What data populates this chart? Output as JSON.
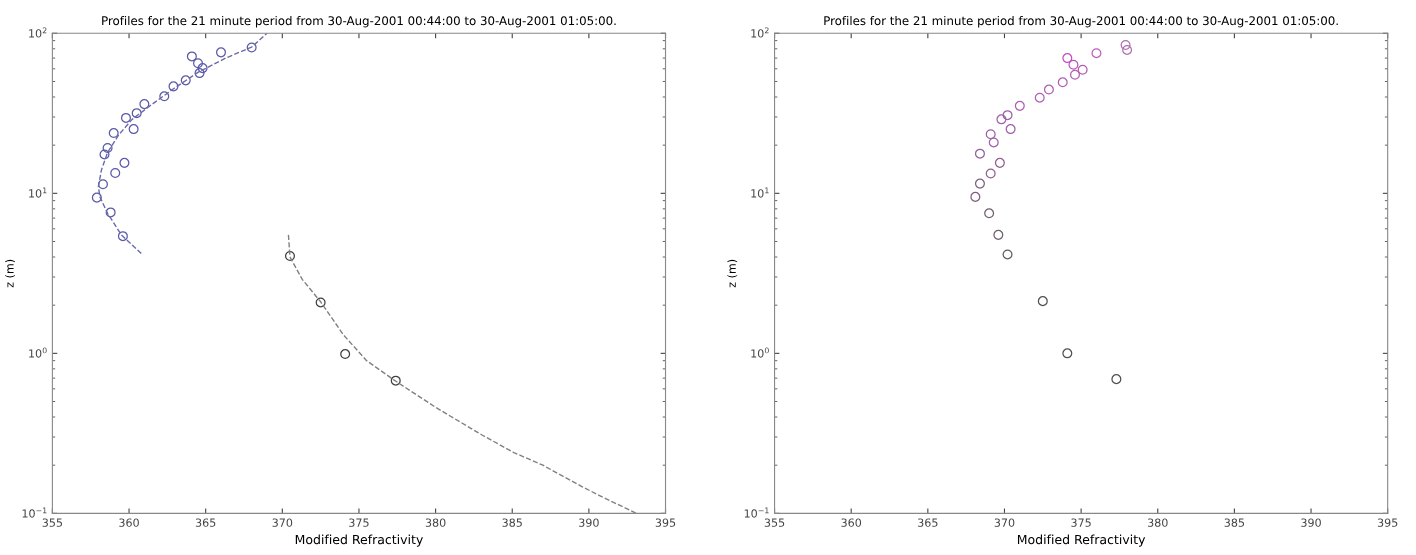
{
  "chart_data": [
    {
      "type": "scatter",
      "title": "Profiles for the 21 minute period from 30-Aug-2001 00:44:00 to 30-Aug-2001 01:05:00.",
      "xlabel": "Modified Refractivity",
      "ylabel": "z (m)",
      "log": "y",
      "xlim": [
        355,
        395
      ],
      "xticks": [
        355,
        360,
        365,
        370,
        375,
        380,
        385,
        390,
        395
      ],
      "ylim": [
        0.1,
        100
      ],
      "yticks": [
        {
          "value": 0.1,
          "label": "10$^{−1}$"
        },
        {
          "value": 1,
          "label": "10$^{0}$"
        },
        {
          "value": 10,
          "label": "10$^{1}$"
        },
        {
          "value": 100,
          "label": "10$^{2}$"
        }
      ],
      "marker": "circle",
      "grid": false,
      "series": [
        {
          "type": "line",
          "line_style": "dashed",
          "marker": "none",
          "color": "#6a6aa8",
          "x": [
            360.8,
            359.5,
            358.6,
            358.1,
            358.0,
            358.2,
            358.6,
            359.3,
            360.2,
            361.5,
            362.9,
            364.5,
            366.3,
            368.0,
            369.0
          ],
          "values": [
            4.2,
            5.5,
            7.5,
            9.5,
            11,
            14,
            18,
            23,
            29,
            36,
            45,
            57,
            70,
            82,
            100
          ]
        },
        {
          "type": "line",
          "line_style": "dashed",
          "marker": "none",
          "color": "#808080",
          "x": [
            370.4,
            370.5,
            371.3,
            372.5,
            374.0,
            375.5,
            377.3,
            380.0,
            383.0,
            385.1,
            387.0,
            389.6,
            391.0,
            393.1
          ],
          "values": [
            5.5,
            4.0,
            2.9,
            2.1,
            1.3,
            0.9,
            0.68,
            0.46,
            0.31,
            0.24,
            0.2,
            0.146,
            0.125,
            0.1
          ]
        },
        {
          "color": "#5a5aa8",
          "x": [
            368.0,
            366.0,
            364.1,
            364.5,
            364.8,
            364.6,
            363.7,
            362.9,
            362.3,
            361.0,
            360.5,
            359.8,
            360.3,
            359.0,
            358.6,
            358.4,
            359.7,
            359.1,
            358.3,
            357.9,
            358.8,
            359.6
          ],
          "values": [
            81.5,
            76,
            71.7,
            65,
            60.6,
            56.4,
            50.8,
            46.6,
            40.4,
            36.1,
            31.7,
            29.6,
            25.2,
            23.8,
            19.2,
            17.5,
            15.5,
            13.4,
            11.4,
            9.4,
            7.6,
            5.4
          ]
        },
        {
          "color": "#404040",
          "x": [
            370.5,
            372.5,
            374.1,
            377.4
          ],
          "values": [
            4.06,
            2.08,
            0.99,
            0.675
          ]
        }
      ]
    },
    {
      "type": "scatter",
      "title": "Profiles for the 21 minute period from 30-Aug-2001 00:44:00 to 30-Aug-2001 01:05:00.",
      "xlabel": "Modified Refractivity",
      "ylabel": "z (m)",
      "log": "y",
      "xlim": [
        355,
        395
      ],
      "xticks": [
        355,
        360,
        365,
        370,
        375,
        380,
        385,
        390,
        395
      ],
      "ylim": [
        0.1,
        100
      ],
      "yticks": [
        {
          "value": 0.1,
          "label": "10$^{−1}$"
        },
        {
          "value": 1,
          "label": "10$^{0}$"
        },
        {
          "value": 10,
          "label": "10$^{1}$"
        },
        {
          "value": 100,
          "label": "10$^{2}$"
        }
      ],
      "marker": "circle",
      "grid": false,
      "series": [
        {
          "x": [
            377.9,
            378.0,
            376.0,
            374.1,
            374.5,
            375.1,
            374.6,
            373.8,
            372.9,
            372.3,
            371.0,
            370.2,
            369.8,
            370.4,
            369.1,
            369.3,
            368.4,
            369.7,
            369.1,
            368.4,
            368.1,
            369.0,
            369.6,
            370.2,
            372.5,
            374.1,
            377.3
          ],
          "values": [
            84.5,
            78.7,
            75.1,
            70,
            63.6,
            59.2,
            55.1,
            49.4,
            44.5,
            39.6,
            35.2,
            30.8,
            29,
            25.2,
            23.4,
            20.8,
            17.7,
            15.5,
            13.3,
            11.5,
            9.5,
            7.5,
            5.5,
            4.15,
            2.12,
            1.0,
            0.69
          ],
          "colors": [
            "#b070b0",
            "#b070b0",
            "#c060c0",
            "#c050c0",
            "#c050c0",
            "#b060b0",
            "#b060b0",
            "#b060b0",
            "#b060b0",
            "#b060b0",
            "#b060b0",
            "#a060a8",
            "#a060a8",
            "#a060a8",
            "#a060a8",
            "#a060a8",
            "#9060a0",
            "#906090",
            "#906090",
            "#806080",
            "#806080",
            "#706070",
            "#706070",
            "#606060",
            "#505050",
            "#505050",
            "#505050"
          ]
        }
      ]
    }
  ]
}
